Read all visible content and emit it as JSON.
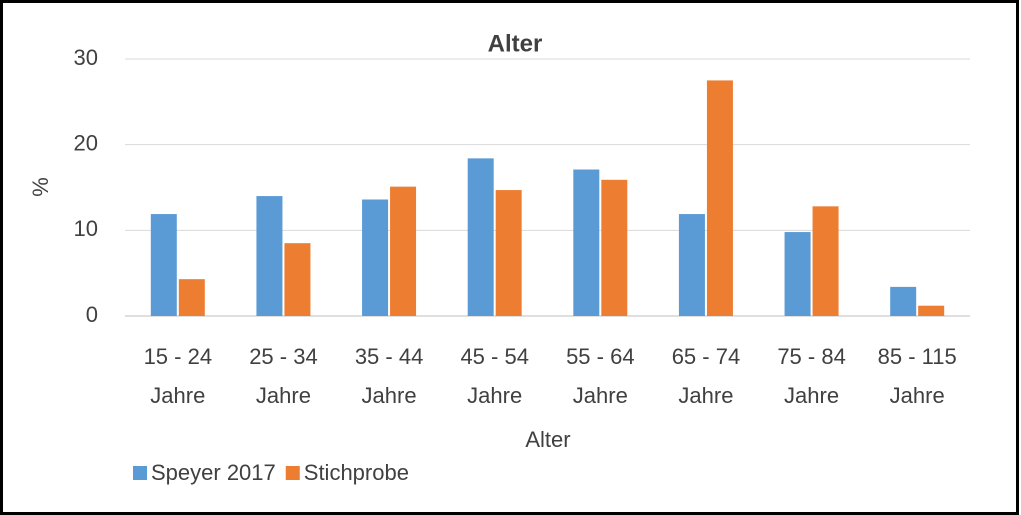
{
  "chart_data": {
    "type": "bar",
    "title": "Alter",
    "x_label": "Alter",
    "y_label": "%",
    "categories": [
      "15 - 24 Jahre",
      "25 - 34 Jahre",
      "35 - 44 Jahre",
      "45 - 54 Jahre",
      "55 - 64 Jahre",
      "65 - 74 Jahre",
      "75 - 84 Jahre",
      "85 - 115 Jahre"
    ],
    "series": [
      {
        "name": "Speyer 2017",
        "color": "#5b9bd5",
        "values": [
          11.9,
          14.0,
          13.6,
          18.4,
          17.1,
          11.9,
          9.8,
          3.4
        ]
      },
      {
        "name": "Stichprobe",
        "color": "#ed7d31",
        "values": [
          4.3,
          8.5,
          15.1,
          14.7,
          15.9,
          27.5,
          12.8,
          1.2
        ]
      }
    ],
    "ylim": [
      0,
      30
    ],
    "yticks": [
      0,
      10,
      20,
      30
    ],
    "grid": true,
    "legend": "bottom-left"
  }
}
